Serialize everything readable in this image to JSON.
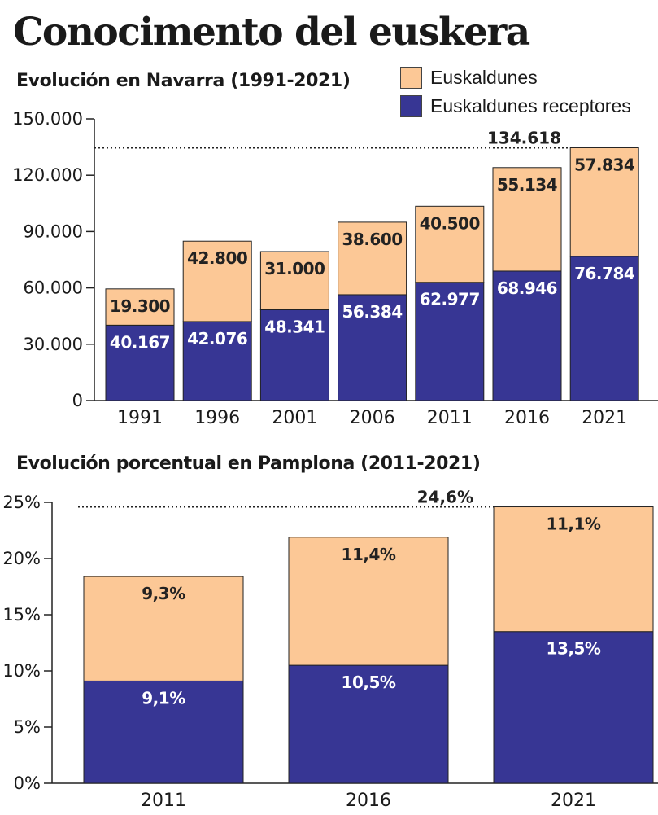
{
  "title": "Conocimento del euskera",
  "colors": {
    "euskaldunes": "#fcc896",
    "receptores": "#373694",
    "axis": "#222222"
  },
  "legend": [
    {
      "label": "Euskaldunes",
      "color": "#fcc896"
    },
    {
      "label": "Euskaldunes receptores",
      "color": "#373694"
    }
  ],
  "chart_data": [
    {
      "type": "bar",
      "stacked": true,
      "title": "Evolución en Navarra (1991-2021)",
      "categories": [
        "1991",
        "1996",
        "2001",
        "2006",
        "2011",
        "2016",
        "2021"
      ],
      "series": [
        {
          "name": "Euskaldunes receptores",
          "values": [
            40167,
            42076,
            48341,
            56384,
            62977,
            68946,
            76784
          ],
          "labels": [
            "40.167",
            "42.076",
            "48.341",
            "56.384",
            "62.977",
            "68.946",
            "76.784"
          ]
        },
        {
          "name": "Euskaldunes",
          "values": [
            19300,
            42800,
            31000,
            38600,
            40500,
            55134,
            57834
          ],
          "labels": [
            "19.300",
            "42.800",
            "31.000",
            "38.600",
            "40.500",
            "55.134",
            "57.834"
          ]
        }
      ],
      "ylim": [
        0,
        150000
      ],
      "yticks": [
        0,
        30000,
        60000,
        90000,
        120000,
        150000
      ],
      "ytick_labels": [
        "0",
        "30.000",
        "60.000",
        "90.000",
        "120.000",
        "150.000"
      ],
      "reference_line": {
        "value": 134618,
        "label": "134.618"
      },
      "legend_position": "top-right",
      "grid": false
    },
    {
      "type": "bar",
      "stacked": true,
      "title": "Evolución porcentual en Pamplona (2011-2021)",
      "categories": [
        "2011",
        "2016",
        "2021"
      ],
      "series": [
        {
          "name": "Euskaldunes receptores",
          "values": [
            9.1,
            10.5,
            13.5
          ],
          "labels": [
            "9,1%",
            "10,5%",
            "13,5%"
          ]
        },
        {
          "name": "Euskaldunes",
          "values": [
            9.3,
            11.4,
            11.1
          ],
          "labels": [
            "9,3%",
            "11,4%",
            "11,1%"
          ]
        }
      ],
      "ylim": [
        0,
        25
      ],
      "yticks": [
        0,
        5,
        10,
        15,
        20,
        25
      ],
      "ytick_labels": [
        "0%",
        "5%",
        "10%",
        "15%",
        "20%",
        "25%"
      ],
      "reference_line": {
        "value": 24.6,
        "label": "24,6%"
      },
      "grid": false
    }
  ]
}
